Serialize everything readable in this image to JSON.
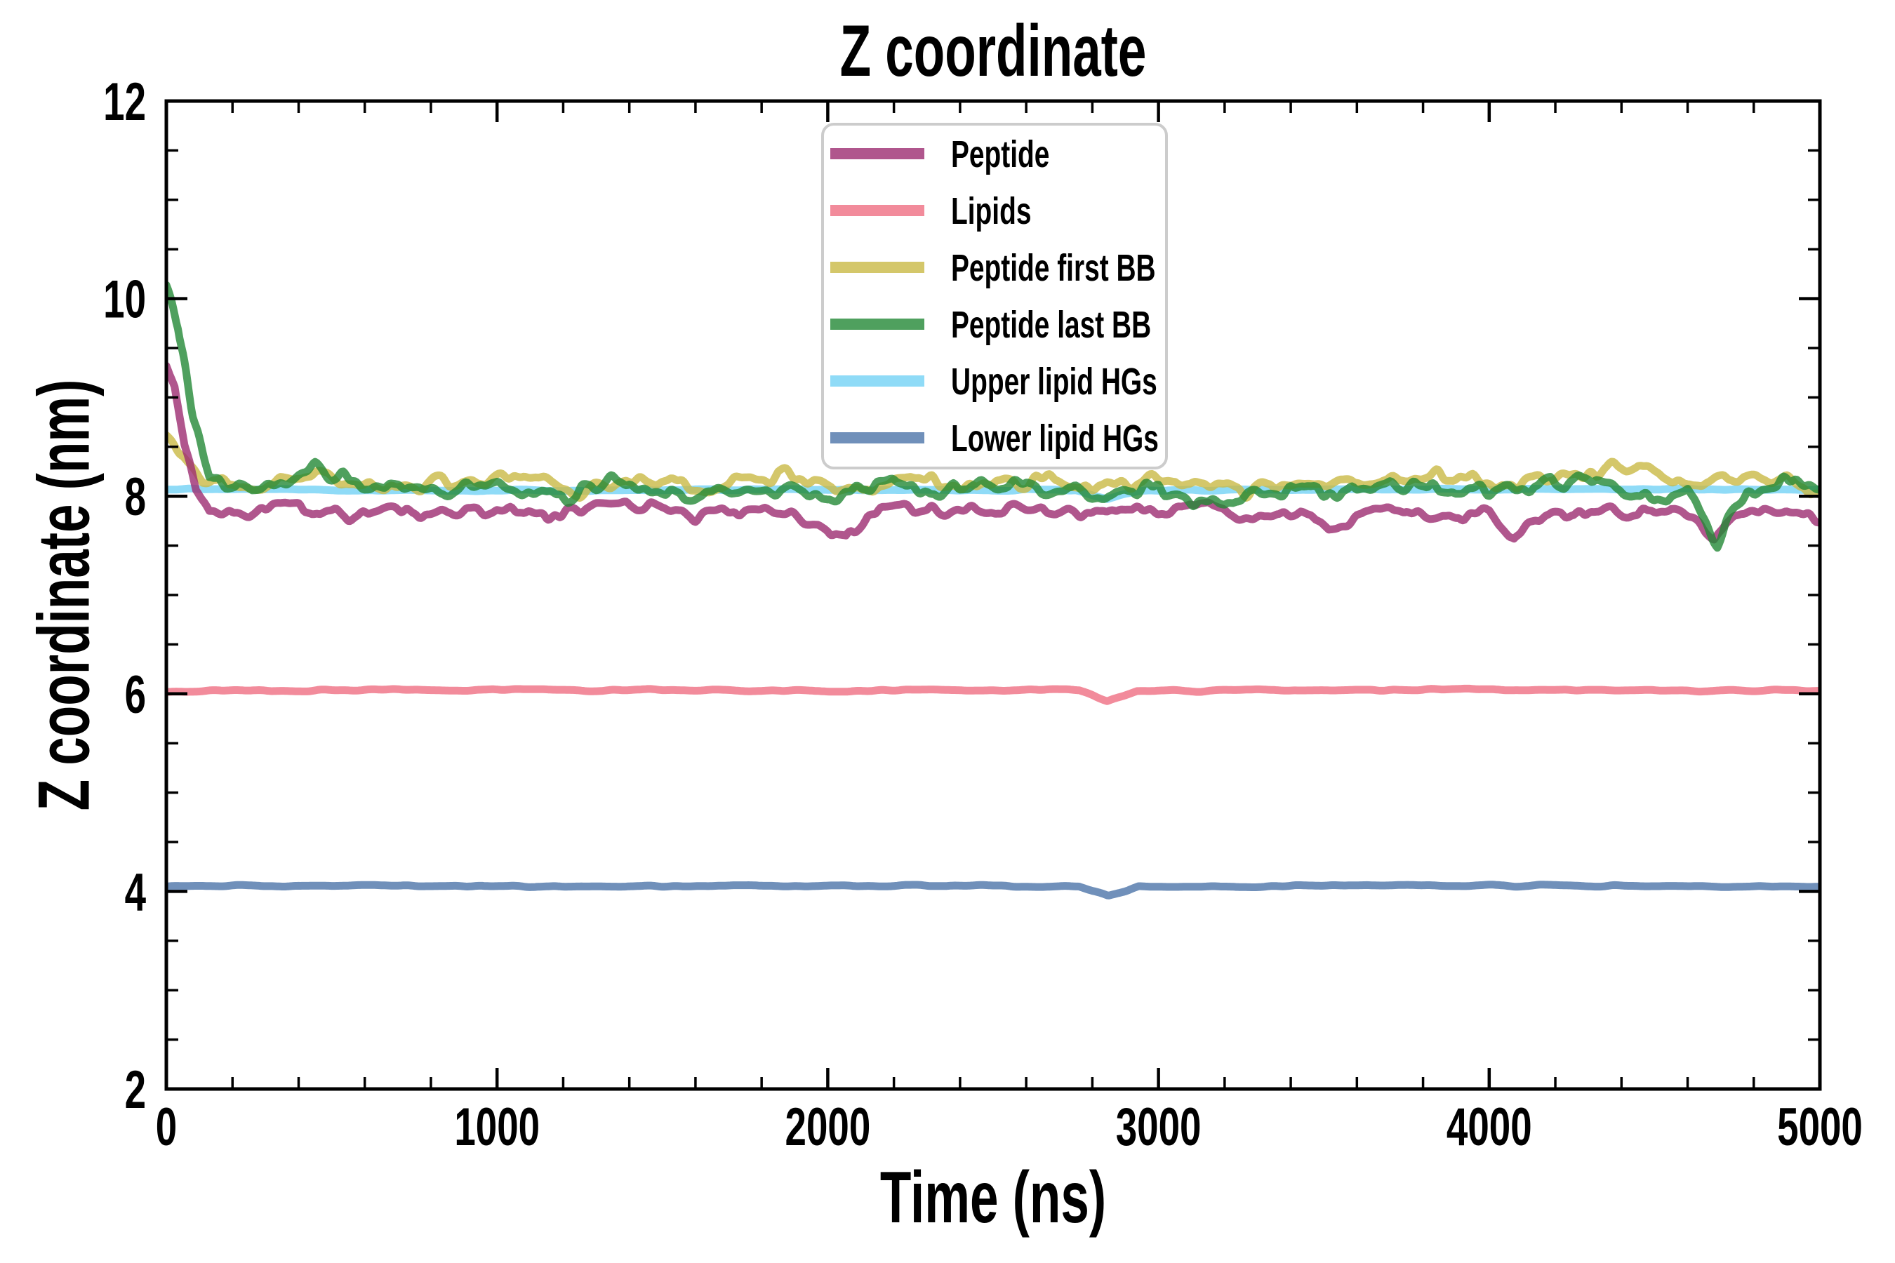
{
  "figure": {
    "title": "Z coordinate",
    "background": "#ffffff"
  },
  "axes": {
    "xlabel": "Time (ns)",
    "ylabel": "Z coordinate (nm)",
    "xlim": [
      0,
      5000
    ],
    "ylim": [
      2,
      12
    ],
    "xticks": {
      "major": [
        0,
        1000,
        2000,
        3000,
        4000,
        5000
      ],
      "labels": [
        "0",
        "1000",
        "2000",
        "3000",
        "4000",
        "5000"
      ],
      "minor_step": 200
    },
    "yticks": {
      "major": [
        2,
        4,
        6,
        8,
        10,
        12
      ],
      "labels": [
        "2",
        "4",
        "6",
        "8",
        "10",
        "12"
      ],
      "minor_step": 0.5
    },
    "grid": false,
    "tick_direction": "in",
    "spine_color": "#000000"
  },
  "legend": {
    "border_color": "#cccccc",
    "background": "rgba(255,255,255,0.8)",
    "items": [
      {
        "series": "peptide",
        "label": "Peptide"
      },
      {
        "series": "lipids",
        "label": "Lipids"
      },
      {
        "series": "peptide_first_bb",
        "label": "Peptide first BB"
      },
      {
        "series": "peptide_last_bb",
        "label": "Peptide last BB"
      },
      {
        "series": "upper_lipid_hgs",
        "label": "Upper lipid HGs"
      },
      {
        "series": "lower_lipid_hgs",
        "label": "Lower lipid HGs"
      }
    ]
  },
  "chart_data": {
    "type": "line",
    "title": "Z coordinate",
    "xlabel": "Time (ns)",
    "ylabel": "Z coordinate (nm)",
    "xlim": [
      0,
      5000
    ],
    "ylim": [
      2,
      12
    ],
    "legend_position": "upper center-left",
    "draw_order": [
      "lipids",
      "lower_lipid_hgs",
      "upper_lipid_hgs",
      "peptide_first_bb",
      "peptide",
      "peptide_last_bb"
    ],
    "series": [
      {
        "key": "peptide",
        "name": "Peptide",
        "color": "#9c2c70",
        "alpha": 0.8,
        "linewidth": 11,
        "noise_amp": 0.09,
        "noise_scale": 42,
        "seed": 11,
        "anchors": [
          [
            0,
            9.35
          ],
          [
            25,
            9.15
          ],
          [
            55,
            8.55
          ],
          [
            90,
            8.05
          ],
          [
            130,
            7.82
          ],
          [
            250,
            7.85
          ],
          [
            400,
            7.92
          ],
          [
            550,
            7.8
          ],
          [
            700,
            7.88
          ],
          [
            850,
            7.82
          ],
          [
            1000,
            7.9
          ],
          [
            1150,
            7.78
          ],
          [
            1300,
            7.85
          ],
          [
            1450,
            7.88
          ],
          [
            1600,
            7.8
          ],
          [
            1750,
            7.87
          ],
          [
            1900,
            7.78
          ],
          [
            2000,
            7.7
          ],
          [
            2055,
            7.56
          ],
          [
            2120,
            7.8
          ],
          [
            2250,
            7.88
          ],
          [
            2400,
            7.82
          ],
          [
            2550,
            7.86
          ],
          [
            2700,
            7.8
          ],
          [
            2850,
            7.88
          ],
          [
            3000,
            7.84
          ],
          [
            3150,
            7.9
          ],
          [
            3300,
            7.8
          ],
          [
            3430,
            7.85
          ],
          [
            3515,
            7.64
          ],
          [
            3620,
            7.8
          ],
          [
            3750,
            7.86
          ],
          [
            3900,
            7.8
          ],
          [
            4000,
            7.88
          ],
          [
            4075,
            7.6
          ],
          [
            4160,
            7.82
          ],
          [
            4300,
            7.86
          ],
          [
            4450,
            7.8
          ],
          [
            4550,
            7.88
          ],
          [
            4680,
            7.62
          ],
          [
            4780,
            7.85
          ],
          [
            4900,
            7.88
          ],
          [
            5000,
            7.8
          ]
        ]
      },
      {
        "key": "lipids",
        "name": "Lipids",
        "color": "#ef6e82",
        "alpha": 0.8,
        "linewidth": 11,
        "noise_amp": 0.016,
        "noise_scale": 80,
        "seed": 63,
        "anchors": [
          [
            0,
            6.03
          ],
          [
            1000,
            6.04
          ],
          [
            2000,
            6.03
          ],
          [
            2760,
            6.04
          ],
          [
            2845,
            5.93
          ],
          [
            2935,
            6.03
          ],
          [
            4000,
            6.04
          ],
          [
            5000,
            6.03
          ]
        ]
      },
      {
        "key": "peptide_first_bb",
        "name": "Peptide first BB",
        "color": "#c9b945",
        "alpha": 0.8,
        "linewidth": 11,
        "noise_amp": 0.1,
        "noise_scale": 48,
        "seed": 23,
        "anchors": [
          [
            0,
            8.62
          ],
          [
            50,
            8.45
          ],
          [
            110,
            8.12
          ],
          [
            250,
            8.1
          ],
          [
            450,
            8.22
          ],
          [
            650,
            8.1
          ],
          [
            850,
            8.16
          ],
          [
            1050,
            8.2
          ],
          [
            1250,
            8.06
          ],
          [
            1450,
            8.18
          ],
          [
            1650,
            8.1
          ],
          [
            1850,
            8.22
          ],
          [
            2050,
            8.06
          ],
          [
            2250,
            8.16
          ],
          [
            2450,
            8.1
          ],
          [
            2650,
            8.16
          ],
          [
            2850,
            8.08
          ],
          [
            3050,
            8.2
          ],
          [
            3250,
            8.06
          ],
          [
            3450,
            8.12
          ],
          [
            3650,
            8.16
          ],
          [
            3850,
            8.2
          ],
          [
            4050,
            8.1
          ],
          [
            4250,
            8.24
          ],
          [
            4450,
            8.3
          ],
          [
            4600,
            8.12
          ],
          [
            4750,
            8.2
          ],
          [
            4900,
            8.15
          ],
          [
            5000,
            8.02
          ]
        ]
      },
      {
        "key": "peptide_last_bb",
        "name": "Peptide last BB",
        "color": "#238836",
        "alpha": 0.8,
        "linewidth": 11,
        "noise_amp": 0.12,
        "noise_scale": 45,
        "seed": 37,
        "anchors": [
          [
            0,
            10.08
          ],
          [
            35,
            9.75
          ],
          [
            80,
            8.9
          ],
          [
            130,
            8.2
          ],
          [
            260,
            8.08
          ],
          [
            450,
            8.28
          ],
          [
            600,
            8.05
          ],
          [
            800,
            8.02
          ],
          [
            1000,
            8.12
          ],
          [
            1200,
            7.98
          ],
          [
            1400,
            8.18
          ],
          [
            1600,
            8.04
          ],
          [
            1800,
            8.1
          ],
          [
            2000,
            7.96
          ],
          [
            2200,
            8.1
          ],
          [
            2400,
            8.04
          ],
          [
            2600,
            8.14
          ],
          [
            2800,
            8.0
          ],
          [
            3000,
            8.1
          ],
          [
            3200,
            7.92
          ],
          [
            3400,
            8.1
          ],
          [
            3550,
            8.04
          ],
          [
            3700,
            8.14
          ],
          [
            3900,
            8.04
          ],
          [
            4100,
            8.1
          ],
          [
            4300,
            8.18
          ],
          [
            4500,
            7.95
          ],
          [
            4600,
            8.1
          ],
          [
            4690,
            7.56
          ],
          [
            4780,
            8.02
          ],
          [
            4900,
            8.12
          ],
          [
            5000,
            8.0
          ]
        ]
      },
      {
        "key": "upper_lipid_hgs",
        "name": "Upper lipid HGs",
        "color": "#73d2f5",
        "alpha": 0.8,
        "linewidth": 11,
        "noise_amp": 0.013,
        "noise_scale": 90,
        "seed": 51,
        "anchors": [
          [
            0,
            8.07
          ],
          [
            1000,
            8.06
          ],
          [
            2000,
            8.07
          ],
          [
            2750,
            8.06
          ],
          [
            2845,
            7.98
          ],
          [
            2940,
            8.06
          ],
          [
            4000,
            8.07
          ],
          [
            5000,
            8.07
          ]
        ]
      },
      {
        "key": "lower_lipid_hgs",
        "name": "Lower lipid HGs",
        "color": "#4c74a9",
        "alpha": 0.8,
        "linewidth": 11,
        "noise_amp": 0.014,
        "noise_scale": 80,
        "seed": 77,
        "anchors": [
          [
            0,
            4.06
          ],
          [
            1000,
            4.05
          ],
          [
            2000,
            4.06
          ],
          [
            2760,
            4.05
          ],
          [
            2848,
            3.96
          ],
          [
            2940,
            4.05
          ],
          [
            4000,
            4.06
          ],
          [
            5000,
            4.05
          ]
        ]
      }
    ]
  }
}
